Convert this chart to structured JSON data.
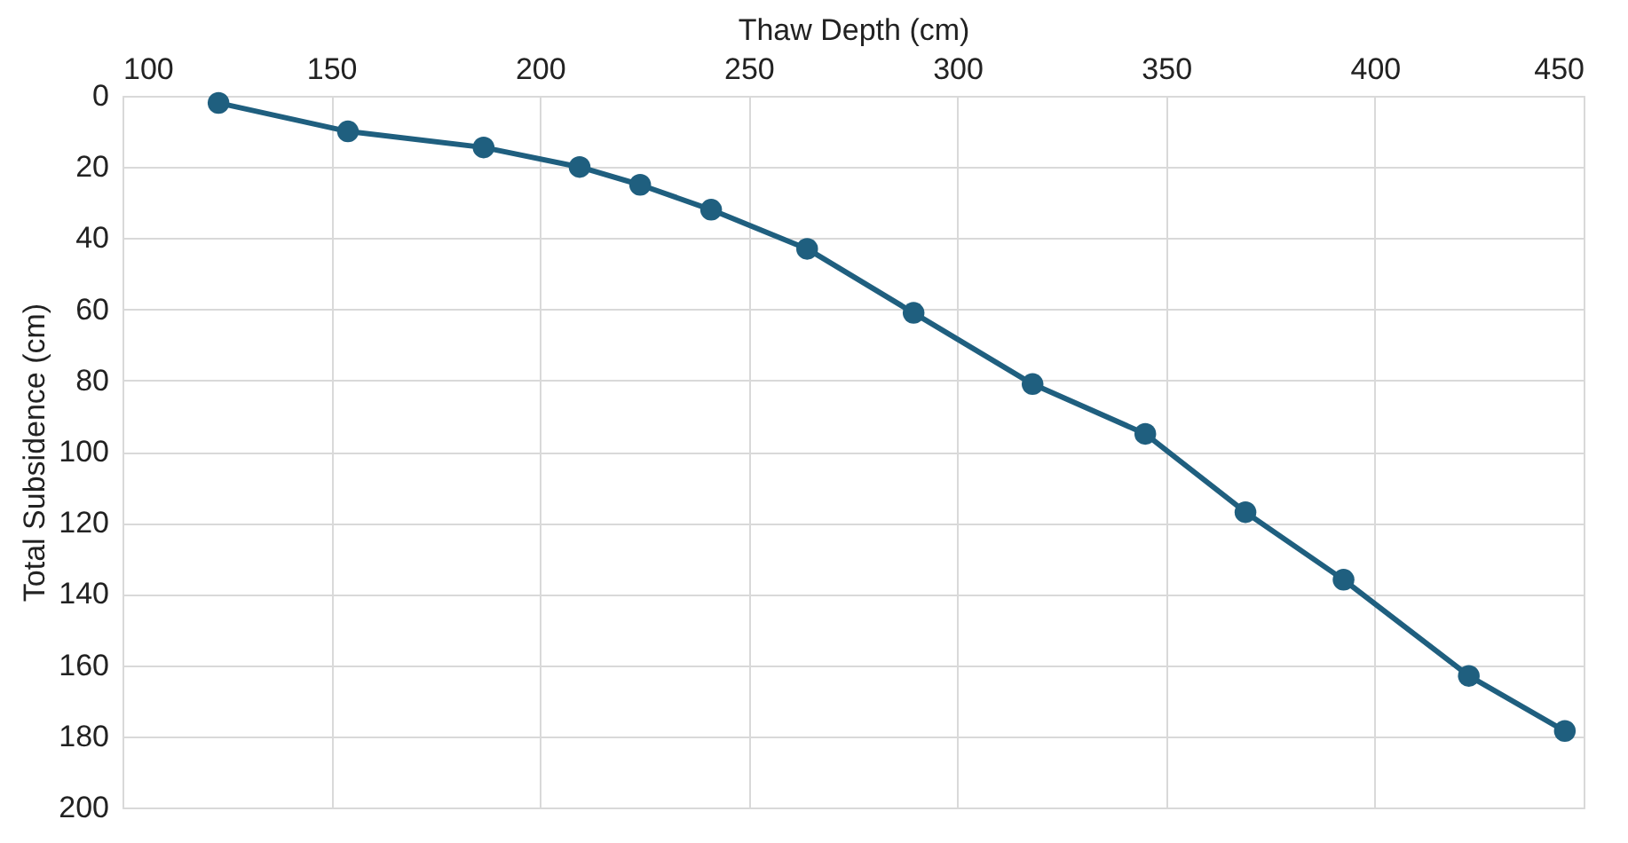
{
  "chart_data": {
    "type": "line",
    "xlabel": "Thaw Depth (cm)",
    "ylabel": "Total Subsidence (cm)",
    "x": [
      123,
      154,
      186.5,
      209.5,
      224,
      241,
      264,
      289.5,
      318,
      345,
      369,
      392.5,
      422.5,
      445.5
    ],
    "series": [
      {
        "color": "#1f5f7f",
        "values": [
          2,
          10,
          14.5,
          20,
          25,
          32,
          43,
          61,
          81,
          95,
          117,
          136,
          163,
          178.5
        ]
      }
    ],
    "xlim": [
      100,
      450
    ],
    "xticks": [
      100,
      150,
      200,
      250,
      300,
      350,
      400,
      450
    ],
    "ylim": [
      200,
      0
    ],
    "yticks": [
      0,
      20,
      40,
      60,
      80,
      100,
      120,
      140,
      160,
      180,
      200
    ],
    "grid": true,
    "marker": "circle",
    "line_style": "solid"
  }
}
